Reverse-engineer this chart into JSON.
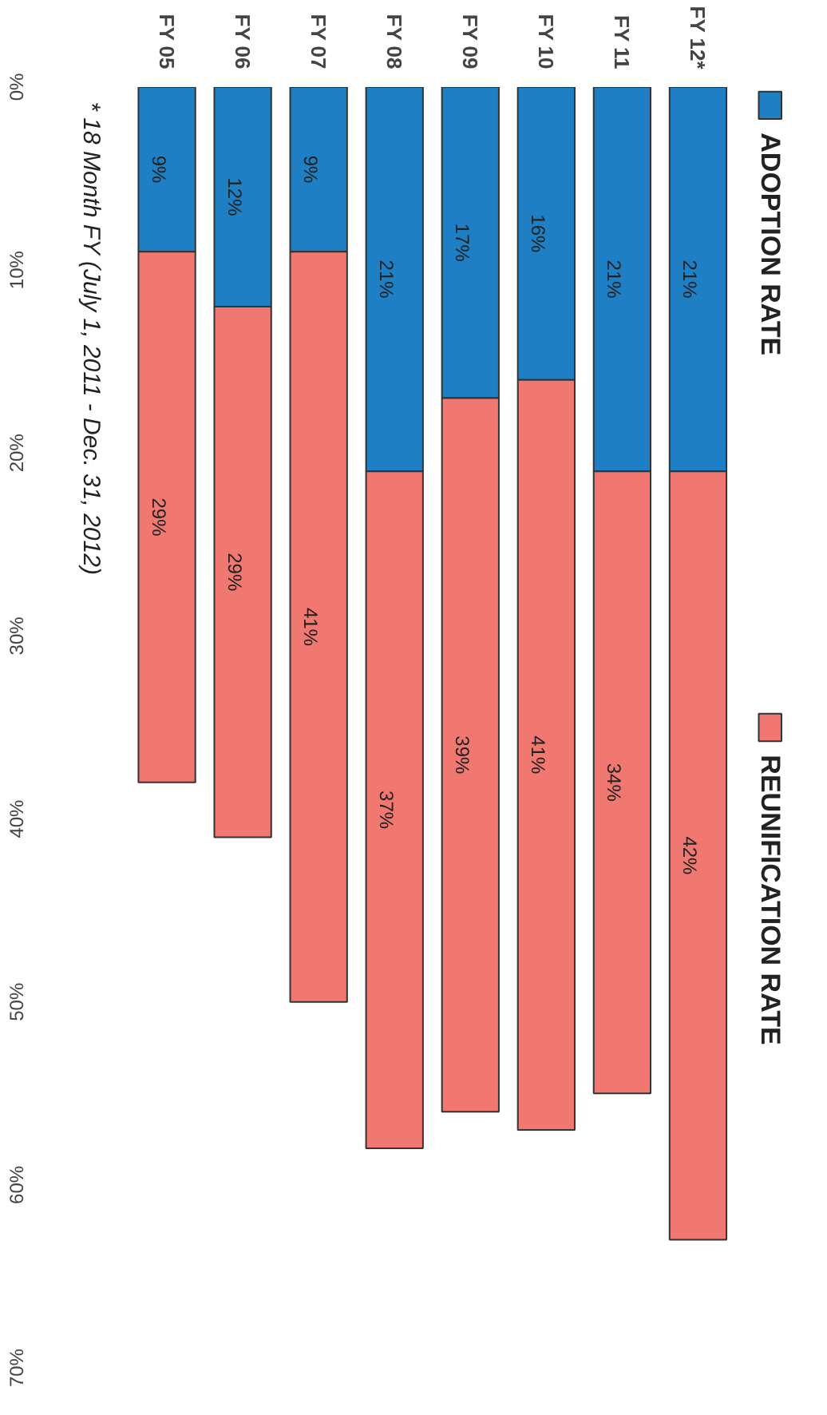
{
  "chart_data": {
    "type": "bar",
    "stacked": true,
    "categories": [
      "FY 05",
      "FY 06",
      "FY 07",
      "FY 08",
      "FY 09",
      "FY 10",
      "FY 11",
      "FY 12*"
    ],
    "series": [
      {
        "name": "ADOPTION RATE",
        "color": "#1f7fc4",
        "values": [
          9,
          12,
          9,
          21,
          17,
          16,
          21,
          21
        ],
        "value_labels": [
          "9%",
          "12%",
          "9%",
          "21%",
          "17%",
          "16%",
          "21%",
          "21%"
        ]
      },
      {
        "name": "REUNIFICATION RATE",
        "color": "#f07870",
        "values": [
          29,
          29,
          41,
          37,
          39,
          41,
          34,
          42
        ],
        "value_labels": [
          "29%",
          "29%",
          "41%",
          "37%",
          "39%",
          "41%",
          "34%",
          "42%"
        ]
      }
    ],
    "ylim": [
      70,
      0
    ],
    "yticks": [
      {
        "value": 0,
        "label": "0%"
      },
      {
        "value": 10,
        "label": "10%"
      },
      {
        "value": 20,
        "label": "20%"
      },
      {
        "value": 30,
        "label": "30%"
      },
      {
        "value": 40,
        "label": "40%"
      },
      {
        "value": 50,
        "label": "50%"
      },
      {
        "value": 60,
        "label": "60%"
      },
      {
        "value": 70,
        "label": "70%"
      }
    ],
    "legend": "right",
    "grid": false,
    "annotations": [
      "* 18 Month FY (July 1, 2011 - Dec. 31, 2012)"
    ]
  }
}
